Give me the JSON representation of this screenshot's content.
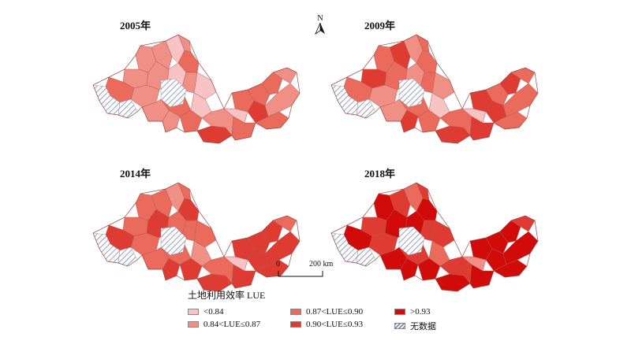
{
  "panels": [
    {
      "year_label": "2005年",
      "fills": [
        "c1",
        "c2",
        "c2",
        "c1",
        "c2",
        "c3",
        "c2",
        "c2",
        "c1",
        "c2",
        "c3",
        "c2",
        "c1",
        "c3",
        "c2",
        "c2",
        "c3",
        "c4",
        "c2",
        "c3",
        "c1",
        "c3",
        "c3",
        "c2",
        "c4",
        "c3",
        "c2",
        "c3"
      ]
    },
    {
      "year_label": "2009年",
      "fills": [
        "c2",
        "c3",
        "c4",
        "c2",
        "c3",
        "c3",
        "c4",
        "c3",
        "c2",
        "c3",
        "c3",
        "c2",
        "c1",
        "c3",
        "c2",
        "c4",
        "c3",
        "c4",
        "c3",
        "c4",
        "c1",
        "c3",
        "c4",
        "c3",
        "c4",
        "c4",
        "c3",
        "c3"
      ]
    },
    {
      "year_label": "2014年",
      "fills": [
        "c3",
        "c3",
        "c3",
        "c2",
        "c3",
        "c4",
        "c3",
        "c4",
        "c3",
        "c3",
        "c4",
        "c3",
        "c2",
        "c3",
        "c3",
        "c4",
        "c4",
        "c4",
        "c3",
        "c4",
        "c1",
        "c4",
        "c4",
        "c3",
        "c4",
        "c4",
        "c4",
        "c4"
      ]
    },
    {
      "year_label": "2018年",
      "fills": [
        "c4",
        "c5",
        "c4",
        "c3",
        "c4",
        "c5",
        "c4",
        "c5",
        "c5",
        "c4",
        "c5",
        "c4",
        "c3",
        "c4",
        "c5",
        "c5",
        "c5",
        "c5",
        "c4",
        "c5",
        "c2",
        "c5",
        "c5",
        "c4",
        "c5",
        "c5",
        "c5",
        "c5"
      ]
    }
  ],
  "classes": {
    "c1": {
      "label": "<0.84",
      "color": "#f7c3c4"
    },
    "c2": {
      "label": "0.84<LUE≤0.87",
      "color": "#f08f85"
    },
    "c3": {
      "label": "0.87<LUE≤0.90",
      "color": "#ea6a5c"
    },
    "c4": {
      "label": "0.90<LUE≤0.93",
      "color": "#de3b33"
    },
    "c5": {
      "label": ">0.93",
      "color": "#d10a0a"
    },
    "nodata": {
      "label": "无数据",
      "color": "#ffffff",
      "hatch": "#7d86a8"
    }
  },
  "legend_title": "土地利用效率 LUE",
  "north_label": "N",
  "scale": {
    "zero_label": "0",
    "distance_label": "200 km"
  },
  "boundary_color": "#b35a55"
}
